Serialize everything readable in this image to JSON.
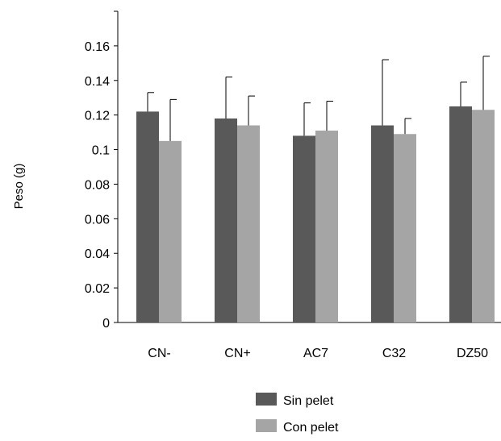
{
  "chart_data": {
    "type": "bar",
    "title": "",
    "xlabel": "",
    "ylabel": "Peso (g)",
    "ylim": [
      0,
      0.18
    ],
    "yticks": [
      "0",
      "0.02",
      "0.04",
      "0.06",
      "0.08",
      "0.1",
      "0.12",
      "0.14",
      "0.16"
    ],
    "categories": [
      "CN-",
      "CN+",
      "AC7",
      "C32",
      "DZ50"
    ],
    "series": [
      {
        "name": "Sin pelet",
        "color": "#595959",
        "values": [
          0.122,
          0.118,
          0.108,
          0.114,
          0.125
        ],
        "error": [
          0.011,
          0.024,
          0.019,
          0.038,
          0.014
        ]
      },
      {
        "name": "Con pelet",
        "color": "#a5a5a5",
        "values": [
          0.105,
          0.114,
          0.111,
          0.109,
          0.123
        ],
        "error": [
          0.024,
          0.017,
          0.017,
          0.009,
          0.031
        ]
      }
    ],
    "error_bars": true,
    "grid": false,
    "legend_position": "bottom"
  }
}
